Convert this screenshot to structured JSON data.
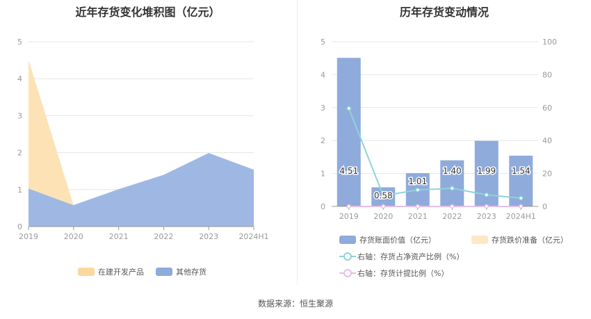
{
  "left_title": "近年存货变化堆积图（亿元）",
  "right_title": "历年存货变动情况",
  "source_text": "数据来源：恒生聚源",
  "chart_data": [
    {
      "type": "area",
      "stacked": true,
      "title": "近年存货变化堆积图（亿元）",
      "categories": [
        "2019",
        "2020",
        "2021",
        "2022",
        "2023",
        "2024H1"
      ],
      "ylim": [
        0,
        5
      ],
      "yticks": [
        "0",
        "1",
        "2",
        "3",
        "4",
        "5"
      ],
      "series": [
        {
          "name": "其他存货",
          "color": "#9fb8e3",
          "values": [
            1.03,
            0.58,
            1.01,
            1.4,
            1.99,
            1.54
          ]
        },
        {
          "name": "在建开发产品",
          "color": "#fde2b5",
          "values": [
            3.48,
            0,
            0,
            0,
            0,
            0
          ]
        }
      ],
      "legend": [
        "在建开发产品",
        "其他存货"
      ],
      "legend_colors": [
        "#fdd89e",
        "#8eabdb"
      ],
      "legend_position": "bottom",
      "grid": true
    },
    {
      "type": "bar",
      "title": "历年存货变动情况",
      "categories": [
        "2019",
        "2020",
        "2021",
        "2022",
        "2023",
        "2024H1"
      ],
      "ylim": [
        0,
        5
      ],
      "yticks": [
        "0",
        "1",
        "2",
        "3",
        "4",
        "5"
      ],
      "y2lim": [
        0,
        100
      ],
      "y2ticks": [
        "0",
        "20",
        "40",
        "60",
        "80",
        "100"
      ],
      "series": [
        {
          "name": "存货账面价值（亿元）",
          "type": "bar",
          "axis": "left",
          "color": "#8eabdb",
          "values": [
            4.51,
            0.58,
            1.01,
            1.4,
            1.99,
            1.54
          ],
          "labels": [
            "4.51",
            "0.58",
            "1.01",
            "1.40",
            "1.99",
            "1.54"
          ]
        },
        {
          "name": "存货跌价准备（亿元）",
          "type": "bar",
          "axis": "left",
          "color": "#fde7c4",
          "values": [
            0,
            0,
            0,
            0,
            0,
            0
          ]
        },
        {
          "name": "右轴：存货占净资产比例（%）",
          "type": "line",
          "axis": "right",
          "color": "#8fd3d8",
          "values": [
            59.5,
            6.5,
            10.0,
            11.0,
            7.0,
            5.0
          ]
        },
        {
          "name": "右轴：存货计提比例（%）",
          "type": "line",
          "axis": "right",
          "color": "#e6bde6",
          "values": [
            0,
            0,
            0,
            0,
            0,
            0
          ]
        }
      ],
      "legend_position": "bottom",
      "grid": true
    }
  ]
}
